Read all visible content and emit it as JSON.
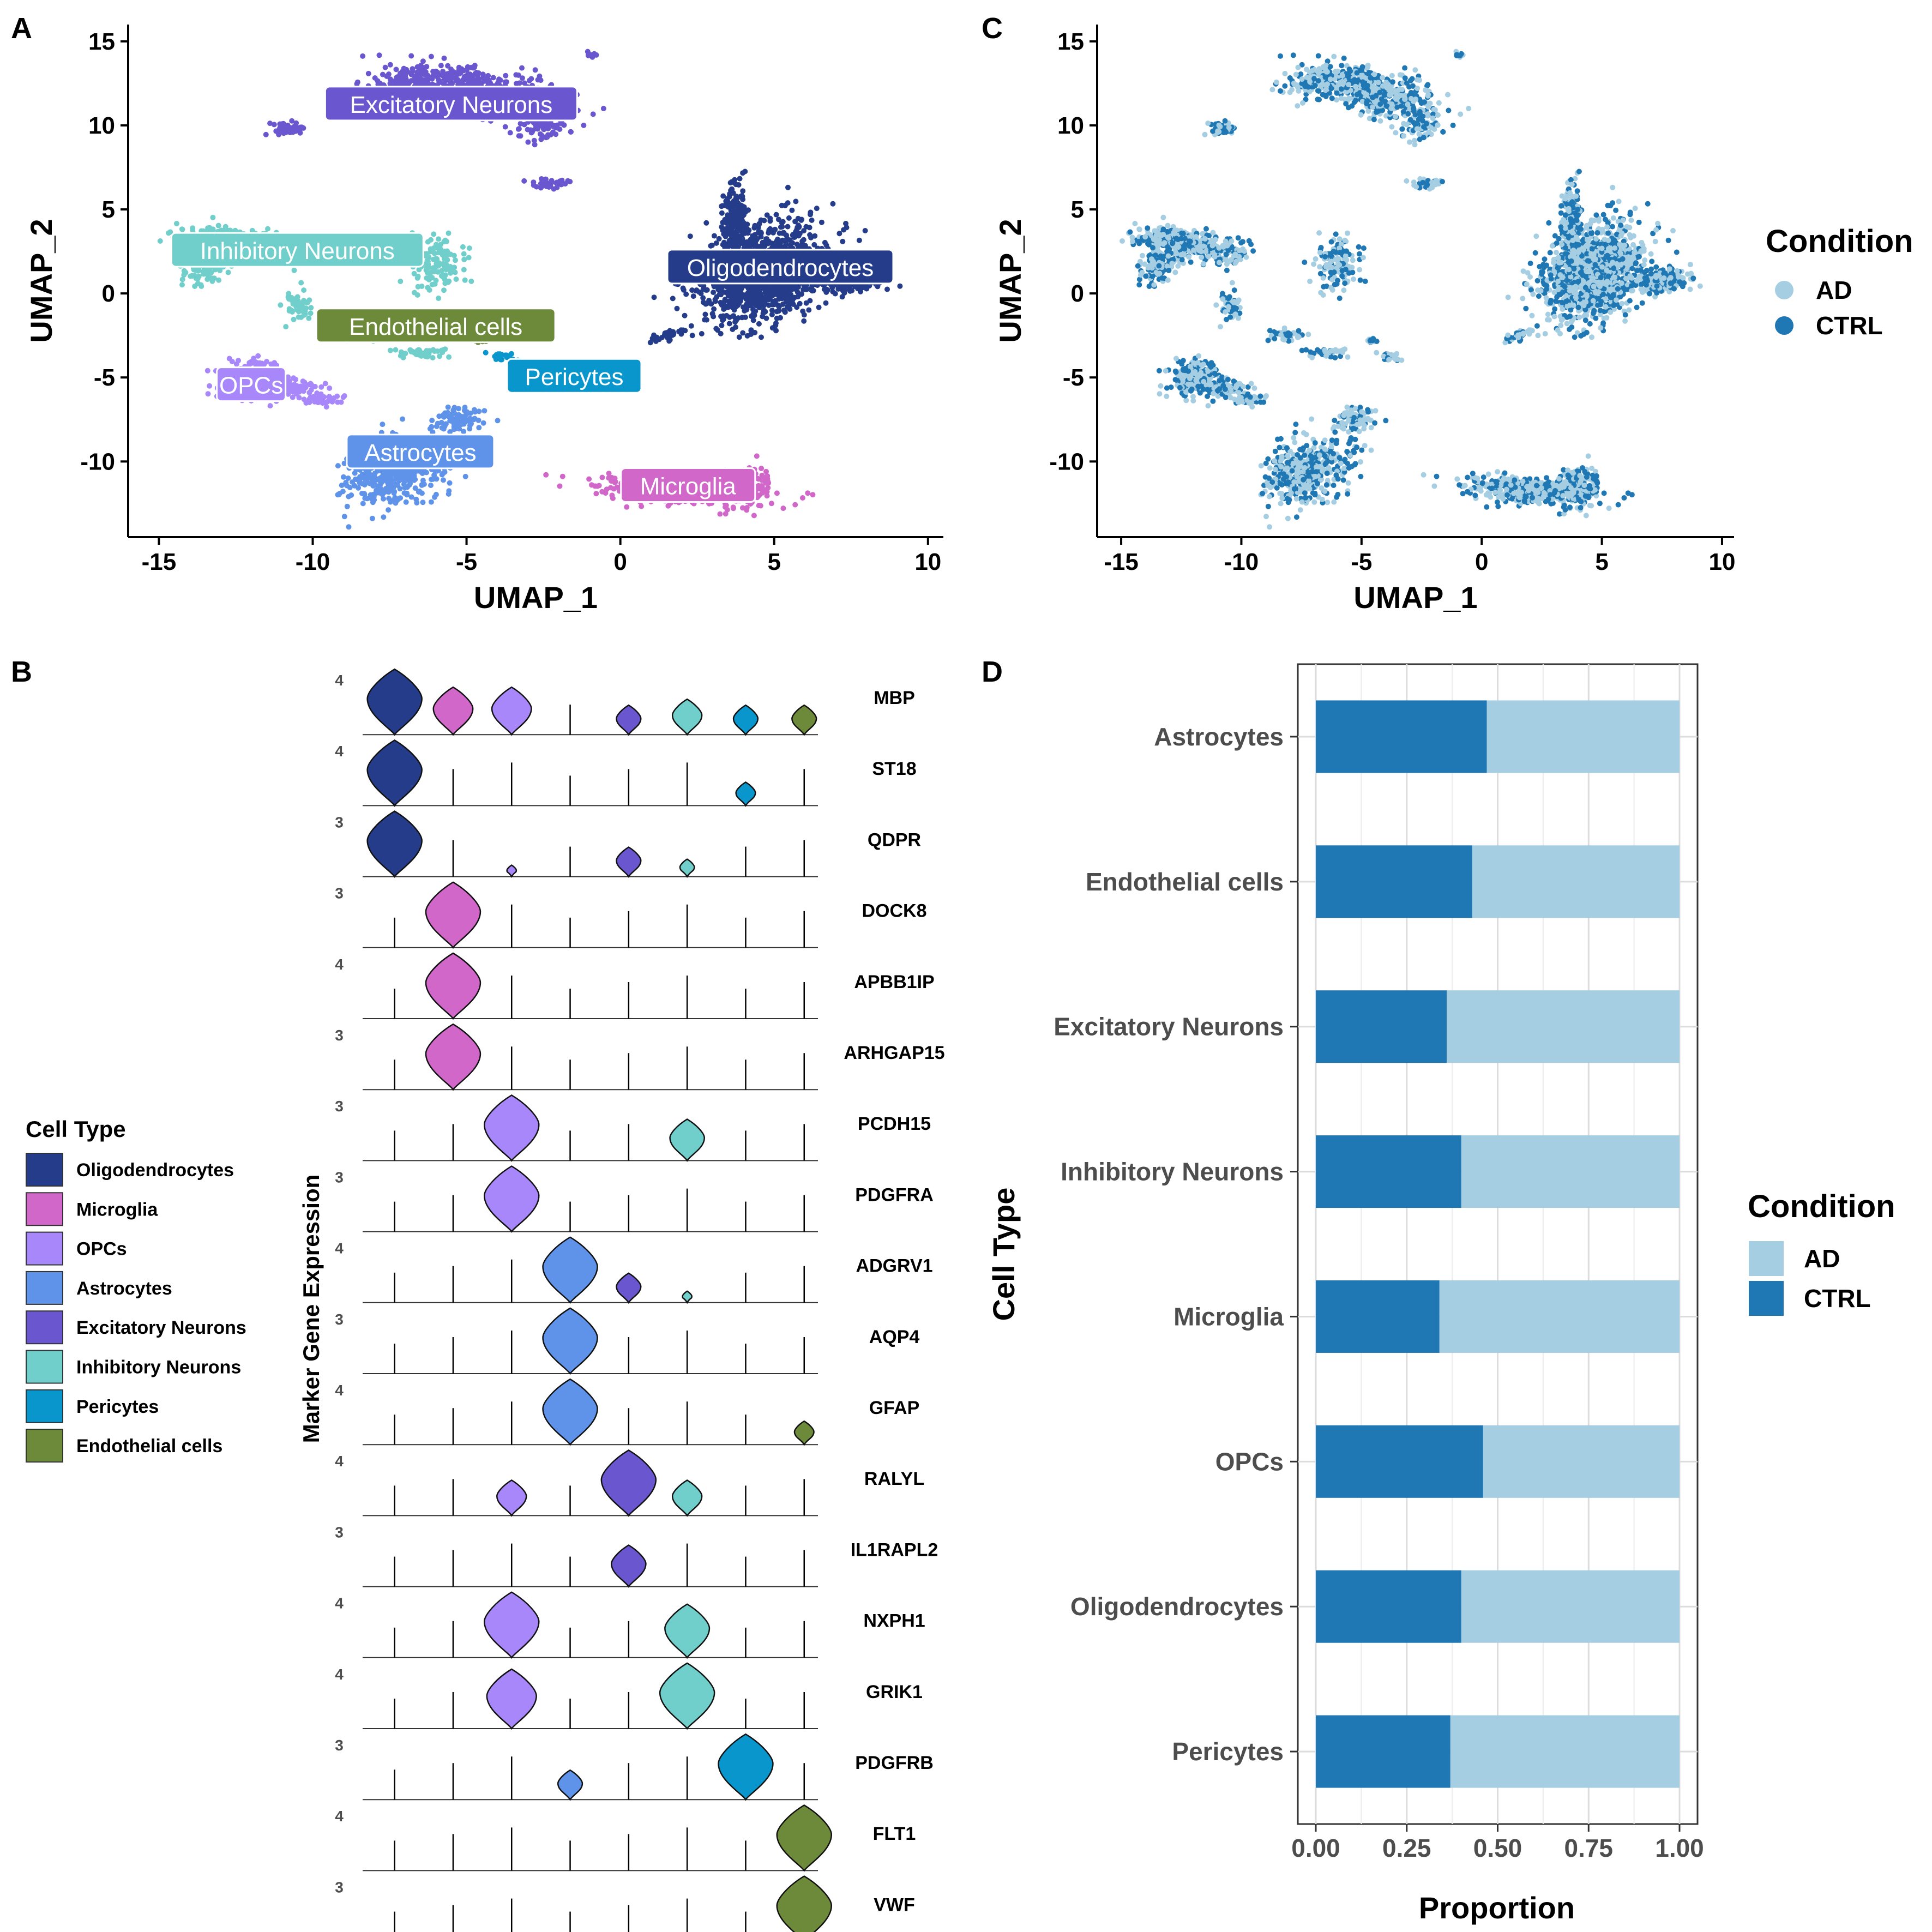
{
  "panels": [
    {
      "letter": "A"
    },
    {
      "letter": "B"
    },
    {
      "letter": "C"
    },
    {
      "letter": "D"
    }
  ],
  "colors": {
    "Oligodendrocytes": "#253C8A",
    "Microglia": "#D067C9",
    "OPCs": "#A787FA",
    "Astrocytes": "#5F93EA",
    "Excitatory Neurons": "#6A56CF",
    "Inhibitory Neurons": "#70CFCB",
    "Pericytes": "#0996CC",
    "Endothelial cells": "#6C8A3A",
    "AD": "#A6CEE3",
    "CTRL": "#1F78B4"
  },
  "chart_data": [
    {
      "id": "A",
      "type": "scatter",
      "xlabel": "UMAP_1",
      "ylabel": "UMAP_2",
      "xlim": [
        -16,
        10.5
      ],
      "ylim": [
        -14.5,
        16
      ],
      "xticks": [
        -15,
        -10,
        -5,
        0,
        5,
        10
      ],
      "yticks": [
        -10,
        -5,
        0,
        5,
        10,
        15
      ],
      "color_by": "Cell Type",
      "clusters": [
        {
          "name": "Excitatory Neurons",
          "label": "Excitatory Neurons",
          "center": [
            -5.5,
            11.2
          ]
        },
        {
          "name": "Inhibitory Neurons",
          "label": "Inhibitory Neurons",
          "center": [
            -10.5,
            2.5
          ]
        },
        {
          "name": "Oligodendrocytes",
          "label": "Oligodendrocytes",
          "center": [
            5.2,
            1.5
          ]
        },
        {
          "name": "Endothelial cells",
          "label": "Endothelial cells",
          "center": [
            -6,
            -2
          ]
        },
        {
          "name": "Pericytes",
          "label": "Pericytes",
          "center": [
            -1.5,
            -5
          ]
        },
        {
          "name": "OPCs",
          "label": "OPCs",
          "center": [
            -12,
            -5.5
          ]
        },
        {
          "name": "Astrocytes",
          "label": "Astrocytes",
          "center": [
            -6.5,
            -9.5
          ]
        },
        {
          "name": "Microglia",
          "label": "Microglia",
          "center": [
            2.2,
            -11.5
          ]
        }
      ]
    },
    {
      "id": "C",
      "type": "scatter",
      "xlabel": "UMAP_1",
      "ylabel": "UMAP_2",
      "xlim": [
        -16,
        10.5
      ],
      "ylim": [
        -14.5,
        16
      ],
      "xticks": [
        -15,
        -10,
        -5,
        0,
        5,
        10
      ],
      "yticks": [
        -10,
        -5,
        0,
        5,
        10,
        15
      ],
      "legend": {
        "title": "Condition",
        "entries": [
          "AD",
          "CTRL"
        ],
        "position": "right"
      }
    },
    {
      "id": "B",
      "type": "violin",
      "ylabel": "Marker Gene Expression",
      "cell_types": [
        "Oligodendrocytes",
        "Microglia",
        "OPCs",
        "Astrocytes",
        "Excitatory Neurons",
        "Inhibitory Neurons",
        "Pericytes",
        "Endothelial cells"
      ],
      "legend": {
        "title": "Cell Type",
        "position": "left"
      },
      "genes": [
        {
          "gene": "MBP",
          "max": "4",
          "expr": [
            1.0,
            0.7,
            0.7,
            0,
            0.4,
            0.5,
            0.4,
            0.4
          ]
        },
        {
          "gene": "ST18",
          "max": "4",
          "expr": [
            1.0,
            0,
            0,
            0,
            0,
            0,
            0.3,
            0
          ]
        },
        {
          "gene": "QDPR",
          "max": "3",
          "expr": [
            1.0,
            0,
            0.1,
            0,
            0.4,
            0.2,
            0,
            0
          ]
        },
        {
          "gene": "DOCK8",
          "max": "3",
          "expr": [
            0,
            1.0,
            0,
            0,
            0,
            0,
            0,
            0
          ]
        },
        {
          "gene": "APBB1IP",
          "max": "4",
          "expr": [
            0,
            1.0,
            0,
            0,
            0,
            0,
            0,
            0
          ]
        },
        {
          "gene": "ARHGAP15",
          "max": "3",
          "expr": [
            0,
            1.0,
            0,
            0,
            0,
            0,
            0,
            0
          ]
        },
        {
          "gene": "PCDH15",
          "max": "3",
          "expr": [
            0,
            0,
            1.0,
            0,
            0,
            0.6,
            0,
            0
          ]
        },
        {
          "gene": "PDGFRA",
          "max": "3",
          "expr": [
            0,
            0,
            1.0,
            0,
            0,
            0,
            0,
            0
          ]
        },
        {
          "gene": "ADGRV1",
          "max": "4",
          "expr": [
            0,
            0,
            0,
            1.0,
            0.4,
            0.1,
            0,
            0
          ]
        },
        {
          "gene": "AQP4",
          "max": "3",
          "expr": [
            0,
            0,
            0,
            1.0,
            0,
            0,
            0,
            0
          ]
        },
        {
          "gene": "GFAP",
          "max": "4",
          "expr": [
            0,
            0,
            0,
            1.0,
            0,
            0,
            0,
            0.3
          ]
        },
        {
          "gene": "RALYL",
          "max": "4",
          "expr": [
            0,
            0,
            0.5,
            0,
            1.0,
            0.5,
            0,
            0
          ]
        },
        {
          "gene": "IL1RAPL2",
          "max": "3",
          "expr": [
            0,
            0,
            0,
            0,
            0.6,
            0,
            0,
            0
          ]
        },
        {
          "gene": "NXPH1",
          "max": "4",
          "expr": [
            0,
            0,
            1.0,
            0,
            0,
            0.8,
            0,
            0
          ]
        },
        {
          "gene": "GRIK1",
          "max": "4",
          "expr": [
            0,
            0,
            0.9,
            0,
            0,
            1.0,
            0,
            0
          ]
        },
        {
          "gene": "PDGFRB",
          "max": "3",
          "expr": [
            0,
            0,
            0,
            0.4,
            0,
            0,
            1.0,
            0
          ]
        },
        {
          "gene": "FLT1",
          "max": "4",
          "expr": [
            0,
            0,
            0,
            0,
            0,
            0,
            0,
            1.0
          ]
        },
        {
          "gene": "VWF",
          "max": "3",
          "expr": [
            0,
            0,
            0,
            0,
            0,
            0,
            0,
            1.0
          ]
        }
      ]
    },
    {
      "id": "D",
      "type": "bar",
      "orientation": "horizontal",
      "stacked": true,
      "xlabel": "Proportion",
      "ylabel": "Cell Type",
      "xlim": [
        0,
        1
      ],
      "xticks": [
        "0.00",
        "0.25",
        "0.50",
        "0.75",
        "1.00"
      ],
      "categories": [
        "Astrocytes",
        "Endothelial cells",
        "Excitatory Neurons",
        "Inhibitory Neurons",
        "Microglia",
        "OPCs",
        "Oligodendrocytes",
        "Pericytes"
      ],
      "series": [
        {
          "name": "CTRL",
          "values": [
            0.47,
            0.43,
            0.36,
            0.4,
            0.34,
            0.46,
            0.4,
            0.37
          ]
        },
        {
          "name": "AD",
          "values": [
            0.53,
            0.57,
            0.64,
            0.6,
            0.66,
            0.54,
            0.6,
            0.63
          ]
        }
      ],
      "legend": {
        "title": "Condition",
        "entries": [
          "AD",
          "CTRL"
        ],
        "position": "right"
      },
      "grid": true
    }
  ]
}
